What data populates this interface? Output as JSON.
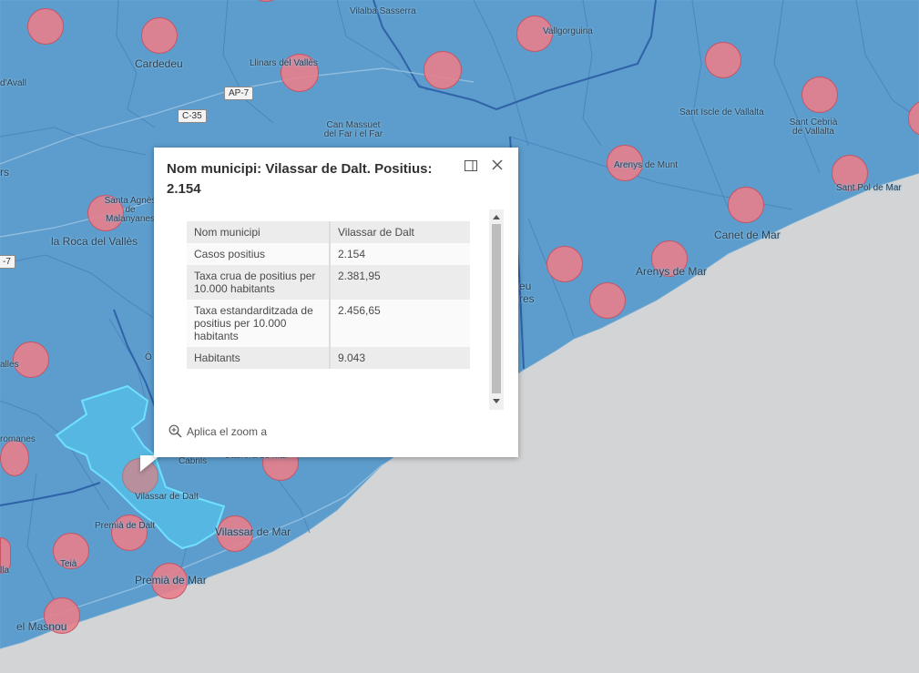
{
  "map": {
    "colors": {
      "land": "#5c9dcd",
      "sea": "#d2d4d6",
      "bubble": "#e8808c",
      "selected_area": "#55bde5",
      "boundary": "#2f62a8"
    },
    "place_labels": [
      "Vilalba Sasserra",
      "Vallgorguina",
      "Cardedeu",
      "Llinars del Vallès",
      "d'Avall",
      "Can Massuet del Far i el Far",
      "Sant Iscle de Vallalta",
      "Sant Cebrià de Vallalta",
      "Arenys de Munt",
      "Sant Pol de Mar",
      "Santa Agnès de Malanyanes",
      "la Roca del Vallès",
      "Canet de Mar",
      "Arenys de Mar",
      "rs",
      "eu",
      "res",
      "alles",
      "Ò",
      "romanes",
      "Cabrils",
      "Cabrera de Mar",
      "Vilassar de Dalt",
      "Premià de Dalt",
      "Vilassar de Mar",
      "Teià",
      "lla",
      "Premià de Mar",
      "el Masnou"
    ],
    "road_shields": [
      "AP-7",
      "C-35",
      "-7"
    ],
    "selected_area": "Vilassar de Dalt"
  },
  "popup": {
    "title": "Nom municipi: Vilassar de Dalt. Positius: 2.154",
    "dock_icon": "dock-icon",
    "close_icon": "close-icon",
    "rows": [
      {
        "key": "Nom municipi",
        "value": "Vilassar de Dalt"
      },
      {
        "key": "Casos positius",
        "value": "2.154"
      },
      {
        "key": "Taxa crua de positius per 10.000 habitants",
        "value": "2.381,95"
      },
      {
        "key": "Taxa estandarditzada de positius per 10.000 habitants",
        "value": "2.456,65"
      },
      {
        "key": "Habitants",
        "value": "9.043"
      }
    ],
    "zoom_label": "Aplica el zoom a",
    "zoom_icon": "zoom-in-icon"
  }
}
